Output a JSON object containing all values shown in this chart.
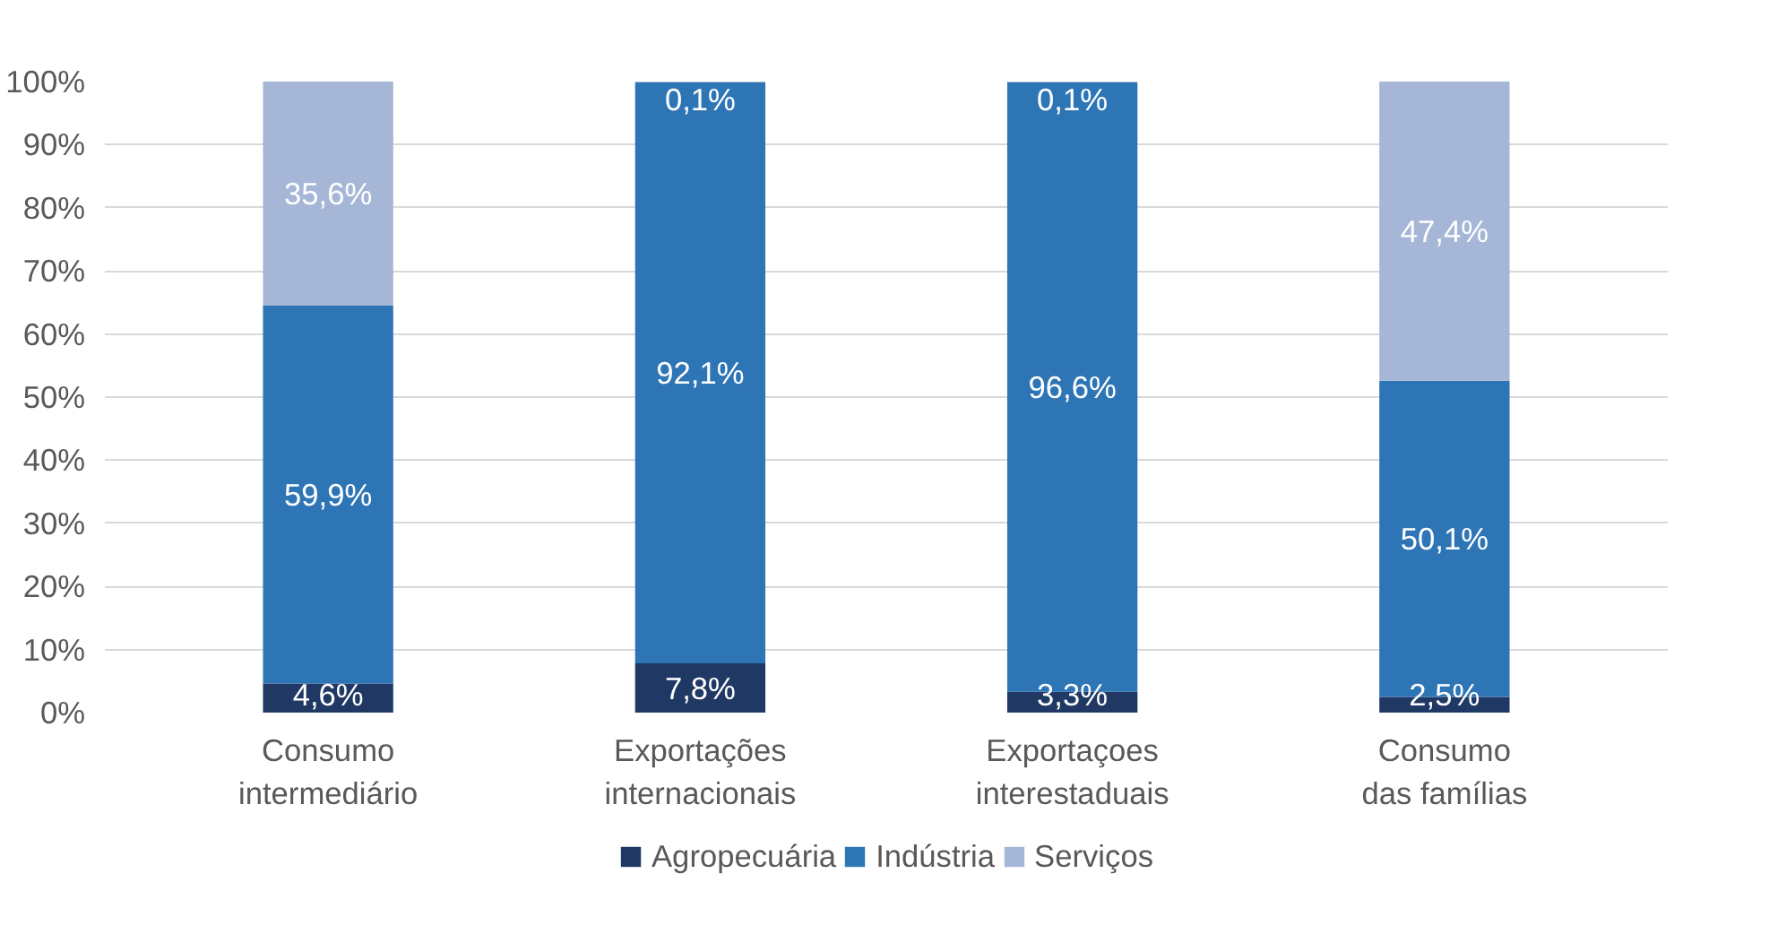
{
  "chart_data": {
    "type": "bar",
    "stacked": true,
    "categories": [
      "Consumo intermediário",
      "Exportações internacionais",
      "Exportaçoes interestaduais",
      "Consumo das famílias"
    ],
    "series": [
      {
        "name": "Agropecuária",
        "color": "#203864",
        "values": [
          4.6,
          7.8,
          3.3,
          2.5
        ],
        "value_labels": [
          "4,6%",
          "7,8%",
          "3,3%",
          "2,5%"
        ]
      },
      {
        "name": "Indústria",
        "color": "#2e75b6",
        "values": [
          59.9,
          92.1,
          96.6,
          50.1
        ],
        "value_labels": [
          "59,9%",
          "92,1%",
          "96,6%",
          "50,1%"
        ]
      },
      {
        "name": "Serviços",
        "color": "#a5b6d6",
        "values": [
          35.6,
          0.1,
          0.1,
          47.4
        ],
        "value_labels": [
          "35,6%",
          "0,1%",
          "0,1%",
          "47,4%"
        ]
      }
    ],
    "ylim": [
      0,
      100
    ],
    "yticks": [
      {
        "value": 0,
        "label": "0%"
      },
      {
        "value": 10,
        "label": "10%"
      },
      {
        "value": 20,
        "label": "20%"
      },
      {
        "value": 30,
        "label": "30%"
      },
      {
        "value": 40,
        "label": "40%"
      },
      {
        "value": 50,
        "label": "50%"
      },
      {
        "value": 60,
        "label": "60%"
      },
      {
        "value": 70,
        "label": "70%"
      },
      {
        "value": 80,
        "label": "80%"
      },
      {
        "value": 90,
        "label": "90%"
      },
      {
        "value": 100,
        "label": "100%"
      }
    ],
    "grid": "y",
    "legend": "bottom"
  }
}
